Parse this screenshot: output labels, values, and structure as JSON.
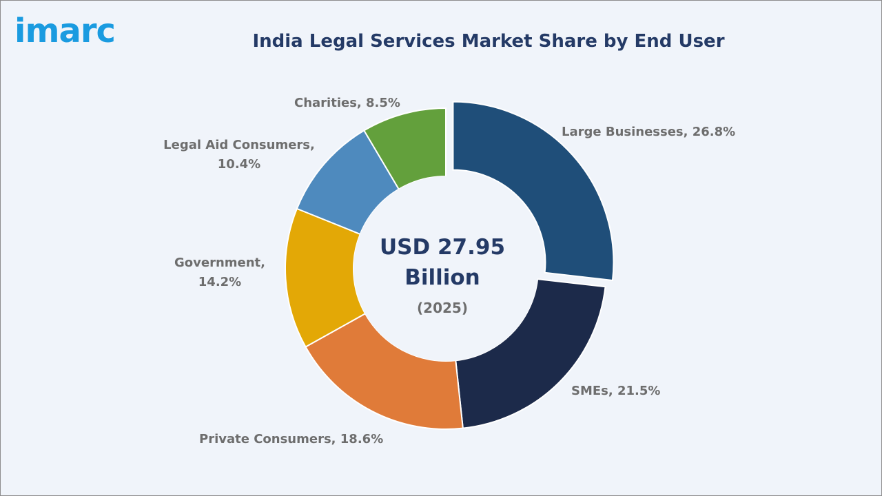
{
  "brand": {
    "logo_text": "imarc",
    "logo_color": "#1a9be0"
  },
  "chart_data": {
    "type": "pie",
    "style": "donut",
    "title": "India Legal Services Market Share by End User",
    "center": {
      "value": "USD 27.95",
      "unit": "Billion",
      "year": "(2025)"
    },
    "slices": [
      {
        "label": "Large Businesses",
        "value": 26.8,
        "label_line1": "Large Businesses, 26.8%",
        "label_line2": "",
        "color": "#1f4e79",
        "exploded": true
      },
      {
        "label": "SMEs",
        "value": 21.5,
        "label_line1": "SMEs, 21.5%",
        "label_line2": "",
        "color": "#1c2a4a",
        "exploded": false
      },
      {
        "label": "Private Consumers",
        "value": 18.6,
        "label_line1": "Private Consumers, 18.6%",
        "label_line2": "",
        "color": "#e07b39",
        "exploded": false
      },
      {
        "label": "Government",
        "value": 14.2,
        "label_line1": "Government,",
        "label_line2": "14.2%",
        "color": "#e3a806",
        "exploded": false
      },
      {
        "label": "Legal Aid Consumers",
        "value": 10.4,
        "label_line1": "Legal Aid Consumers,",
        "label_line2": "10.4%",
        "color": "#4e8abe",
        "exploded": false
      },
      {
        "label": "Charities",
        "value": 8.5,
        "label_line1": "Charities, 8.5%",
        "label_line2": "",
        "color": "#63a03c",
        "exploded": false
      }
    ]
  }
}
